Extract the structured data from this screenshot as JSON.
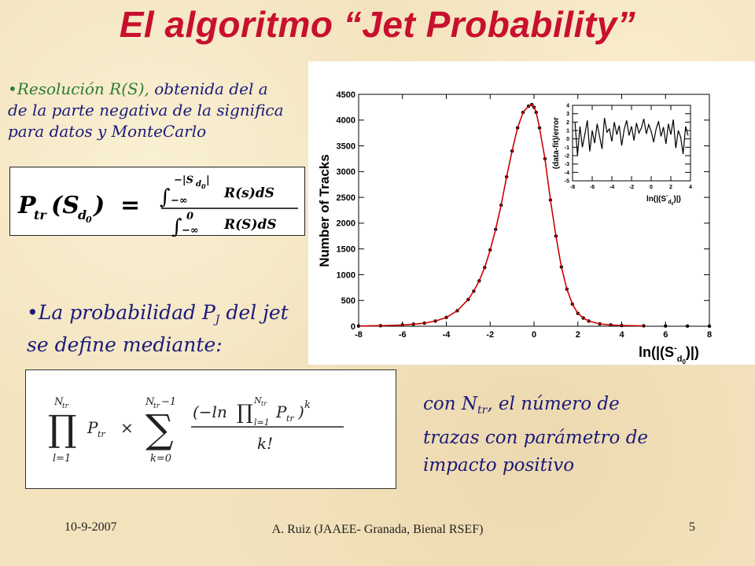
{
  "slide": {
    "title": "El algoritmo “Jet Probability”",
    "bullet1": {
      "marker": "•",
      "lead": "Resolución R(S),",
      "rest": " obtenida del a",
      "line2": "de la parte negativa de la significa",
      "line3": "para datos y MonteCarlo"
    },
    "bullet2": {
      "marker": "•",
      "line1": "La probabilidad P",
      "sub": "J",
      "line1b": " del jet",
      "line2": "se define mediante:"
    },
    "note": {
      "pre": "con N",
      "sub": "tr",
      "post": ", el número de",
      "line2": "trazas  con parámetro de",
      "line3": "impacto positivo"
    }
  },
  "formula1": {
    "lhs": "P",
    "lhs_sub": "tr",
    "arg_open": "(S",
    "arg_sub": "d",
    "arg_sub2": "0",
    "arg_close": ")",
    "eq": "=",
    "num_int": "∫",
    "num_upper": "−|S",
    "num_upper_sub": "d",
    "num_upper_sub2": "0",
    "num_upper_close": "|",
    "num_lower": "−∞",
    "num_body": "R(s)dS",
    "den_int": "∫",
    "den_upper": "0",
    "den_lower": "−∞",
    "den_body": "R(S)dS"
  },
  "formula2": {
    "prod": "∏",
    "prod_upper": "N",
    "prod_upper_sub": "tr",
    "prod_lower": "l=1",
    "term": "P",
    "term_sub": "tr",
    "times": "×",
    "sum": "∑",
    "sum_upper": "N",
    "sum_upper_sub": "tr",
    "sum_upper_rest": "−1",
    "sum_lower": "k=0",
    "num_open": "(−ln",
    "num_prod": "∏",
    "num_prod_upper": "N",
    "num_prod_upper_sub": "tr",
    "num_prod_lower": "l=1",
    "num_term": "P",
    "num_term_sub": "tr",
    "num_close": ")",
    "num_exp": "k",
    "den": "k!"
  },
  "chart_data": [
    {
      "type": "line",
      "ylabel": "Number of Tracks",
      "xlabel_parts": [
        "ln(|(S",
        "-",
        "d",
        "0",
        ")|)"
      ],
      "xlim": [
        -8,
        8
      ],
      "ylim": [
        0,
        4500
      ],
      "x_ticks": [
        "-8",
        "-6",
        "-4",
        "-2",
        "0",
        "2",
        "4",
        "6",
        "8"
      ],
      "y_ticks": [
        "0",
        "500",
        "1000",
        "1500",
        "2000",
        "2500",
        "3000",
        "3500",
        "4000",
        "4500"
      ],
      "series": [
        {
          "role": "data",
          "marker": "dot",
          "color": "#000000",
          "x": [
            -8.0,
            -7.0,
            -6.0,
            -5.5,
            -5.0,
            -4.5,
            -4.0,
            -3.5,
            -3.0,
            -2.75,
            -2.5,
            -2.25,
            -2.0,
            -1.75,
            -1.5,
            -1.25,
            -1.0,
            -0.75,
            -0.5,
            -0.25,
            -0.1,
            0.0,
            0.1,
            0.25,
            0.5,
            0.75,
            1.0,
            1.25,
            1.5,
            1.75,
            2.0,
            2.25,
            2.5,
            3.0,
            3.5,
            4.0,
            5.0,
            6.0,
            7.0,
            8.0
          ],
          "y": [
            5,
            10,
            25,
            40,
            60,
            100,
            170,
            300,
            520,
            680,
            880,
            1140,
            1480,
            1880,
            2350,
            2900,
            3400,
            3850,
            4150,
            4270,
            4300,
            4250,
            4150,
            3850,
            3250,
            2450,
            1750,
            1150,
            720,
            430,
            250,
            160,
            100,
            45,
            25,
            15,
            8,
            5,
            3,
            2
          ]
        },
        {
          "role": "fit",
          "color": "#cc0000",
          "x": [
            -8.0,
            -7.0,
            -6.0,
            -5.5,
            -5.0,
            -4.5,
            -4.0,
            -3.5,
            -3.0,
            -2.75,
            -2.5,
            -2.25,
            -2.0,
            -1.75,
            -1.5,
            -1.25,
            -1.0,
            -0.75,
            -0.5,
            -0.25,
            -0.1,
            0.0,
            0.1,
            0.25,
            0.5,
            0.75,
            1.0,
            1.25,
            1.5,
            1.75,
            2.0,
            2.25,
            2.5,
            3.0,
            3.5,
            4.0,
            5.0
          ],
          "y": [
            5,
            10,
            25,
            40,
            60,
            100,
            170,
            300,
            520,
            680,
            880,
            1140,
            1480,
            1880,
            2350,
            2900,
            3400,
            3850,
            4150,
            4270,
            4300,
            4250,
            4150,
            3850,
            3250,
            2450,
            1750,
            1150,
            720,
            430,
            250,
            160,
            100,
            45,
            25,
            15,
            8
          ]
        }
      ]
    },
    {
      "type": "line",
      "ylabel": "(data-fit)/error",
      "xlabel_parts": [
        "ln(|(S",
        "-",
        "d",
        "0",
        ")|)"
      ],
      "xlim": [
        -8,
        4
      ],
      "ylim": [
        -5,
        4
      ],
      "x_ticks": [
        "-8",
        "-6",
        "-4",
        "-2",
        "0",
        "2",
        "4"
      ],
      "y_ticks": [
        "-5",
        "-4",
        "-3",
        "-2",
        "-1",
        "0",
        "1",
        "2",
        "3",
        "4"
      ],
      "series": [
        {
          "role": "residuals",
          "color": "#000000",
          "x": [
            -7.75,
            -7.5,
            -7.25,
            -7.0,
            -6.75,
            -6.5,
            -6.25,
            -6.0,
            -5.75,
            -5.5,
            -5.25,
            -5.0,
            -4.75,
            -4.5,
            -4.25,
            -4.0,
            -3.75,
            -3.5,
            -3.25,
            -3.0,
            -2.75,
            -2.5,
            -2.25,
            -2.0,
            -1.75,
            -1.5,
            -1.25,
            -1.0,
            -0.75,
            -0.5,
            -0.25,
            0.0,
            0.25,
            0.5,
            0.75,
            1.0,
            1.25,
            1.5,
            1.75,
            2.0,
            2.25,
            2.5,
            2.75,
            3.0,
            3.25,
            3.5,
            3.75
          ],
          "y": [
            2,
            -2,
            1.5,
            -1,
            0.5,
            2.2,
            -1.5,
            1,
            -0.5,
            1.8,
            0.3,
            -1.2,
            2.5,
            0.8,
            1.2,
            -0.3,
            2,
            0.5,
            1.6,
            -0.8,
            1.1,
            2.2,
            0.4,
            1.5,
            -0.2,
            1.9,
            0.7,
            1.3,
            2.4,
            0.6,
            1.7,
            0.9,
            -0.4,
            1.2,
            2.1,
            0.3,
            1.4,
            -0.6,
            1.8,
            0.5,
            2.3,
            -1.1,
            1,
            0.2,
            -1.8,
            1.5,
            0.4
          ]
        }
      ]
    }
  ],
  "footer": {
    "date": "10-9-2007",
    "author": "A. Ruiz (JAAEE- Granada, Bienal RSEF)",
    "page": "5"
  }
}
